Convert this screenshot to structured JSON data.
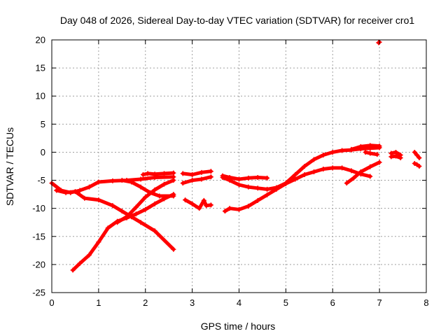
{
  "chart_data": {
    "type": "scatter",
    "title": "Day 048 of 2026, Sidereal Day-to-day VTEC variation (SDTVAR) for receiver cro1",
    "xlabel": "GPS time / hours",
    "ylabel": "SDTVAR / TECUs",
    "xlim": [
      0,
      8
    ],
    "ylim": [
      -25,
      20
    ],
    "xticks": [
      0,
      1,
      2,
      3,
      4,
      5,
      6,
      7,
      8
    ],
    "yticks": [
      -25,
      -20,
      -15,
      -10,
      -5,
      0,
      5,
      10,
      15,
      20
    ],
    "grid": true,
    "color": "#ff0000",
    "series": [
      {
        "x": [
          0.0,
          0.2,
          0.4,
          0.6,
          0.8,
          1.0,
          1.3,
          1.6,
          1.9,
          2.2,
          2.6
        ],
        "y": [
          -5.5,
          -6.8,
          -7.2,
          -6.8,
          -6.2,
          -5.3,
          -5.1,
          -5.0,
          -4.8,
          -4.5,
          -4.4
        ]
      },
      {
        "x": [
          0.1,
          0.3,
          0.5,
          0.7,
          1.0,
          1.3,
          1.5,
          1.7,
          1.9,
          2.2,
          2.6
        ],
        "y": [
          -6.8,
          -7.2,
          -7.0,
          -8.2,
          -8.5,
          -9.5,
          -10.5,
          -11.5,
          -12.5,
          -14.0,
          -17.3
        ]
      },
      {
        "x": [
          0.45,
          0.6,
          0.8,
          1.0,
          1.2,
          1.4,
          1.6,
          1.8,
          2.0,
          2.2,
          2.4,
          2.6
        ],
        "y": [
          -21.0,
          -19.8,
          -18.3,
          -16.0,
          -13.5,
          -12.3,
          -11.7,
          -11.0,
          -10.2,
          -9.2,
          -8.3,
          -7.5
        ]
      },
      {
        "x": [
          1.4,
          1.6,
          1.8,
          2.0,
          2.2,
          2.4,
          2.6
        ],
        "y": [
          -12.5,
          -11.5,
          -9.8,
          -8.0,
          -6.7,
          -5.7,
          -5.0
        ]
      },
      {
        "x": [
          1.5,
          1.7,
          1.9,
          2.1,
          2.3,
          2.6
        ],
        "y": [
          -5.0,
          -5.3,
          -6.2,
          -7.2,
          -7.8,
          -7.8
        ]
      },
      {
        "x": [
          1.95,
          2.05,
          2.2,
          2.4,
          2.6
        ],
        "y": [
          -4.0,
          -3.8,
          -3.9,
          -3.8,
          -3.7
        ]
      },
      {
        "x": [
          2.8,
          3.0,
          3.2,
          3.4
        ],
        "y": [
          -5.5,
          -5.0,
          -4.8,
          -4.4
        ]
      },
      {
        "x": [
          2.8,
          3.0,
          3.2,
          3.4
        ],
        "y": [
          -3.8,
          -4.0,
          -3.6,
          -3.4
        ]
      },
      {
        "x": [
          2.85,
          3.0,
          3.15,
          3.25,
          3.3,
          3.4
        ],
        "y": [
          -8.5,
          -9.2,
          -10.0,
          -8.6,
          -9.5,
          -9.4
        ]
      },
      {
        "x": [
          3.65,
          3.8,
          4.0,
          4.2,
          4.4,
          4.6
        ],
        "y": [
          -4.2,
          -4.5,
          -4.8,
          -4.6,
          -4.5,
          -4.6
        ]
      },
      {
        "x": [
          3.65,
          3.8,
          4.0,
          4.2,
          4.4,
          4.6,
          4.8,
          5.0,
          5.2,
          5.4,
          5.6,
          5.8,
          6.0,
          6.2,
          6.4,
          6.6,
          6.8,
          7.0
        ],
        "y": [
          -4.5,
          -5.0,
          -5.8,
          -6.2,
          -6.4,
          -6.6,
          -6.3,
          -5.5,
          -4.0,
          -2.5,
          -1.3,
          -0.5,
          0.0,
          0.3,
          0.4,
          0.6,
          0.7,
          0.8
        ]
      },
      {
        "x": [
          3.7,
          3.8,
          4.0,
          4.2,
          4.4,
          4.6,
          4.8,
          5.0,
          5.2,
          5.4,
          5.6,
          5.8,
          6.0,
          6.2,
          6.4,
          6.6,
          6.8
        ],
        "y": [
          -10.5,
          -10.0,
          -10.2,
          -9.6,
          -8.6,
          -7.6,
          -6.6,
          -5.6,
          -4.8,
          -4.0,
          -3.5,
          -3.0,
          -2.8,
          -2.8,
          -3.3,
          -3.9,
          -4.3
        ]
      },
      {
        "x": [
          6.3,
          6.45,
          6.6,
          6.8,
          7.0
        ],
        "y": [
          -5.5,
          -4.6,
          -3.5,
          -2.6,
          -1.8
        ]
      },
      {
        "x": [
          6.4,
          6.6,
          6.8,
          7.0
        ],
        "y": [
          0.5,
          1.0,
          1.2,
          1.1
        ]
      },
      {
        "x": [
          6.7,
          6.8,
          6.95
        ],
        "y": [
          0.0,
          -0.2,
          -0.4
        ]
      },
      {
        "x": [
          7.25,
          7.35,
          7.45
        ],
        "y": [
          -0.2,
          0.0,
          -0.5
        ]
      },
      {
        "x": [
          7.25,
          7.35,
          7.45
        ],
        "y": [
          -0.8,
          -0.7,
          -1.0
        ]
      },
      {
        "x": [
          7.75,
          7.8,
          7.85
        ],
        "y": [
          0.0,
          -0.5,
          -1.0
        ]
      },
      {
        "x": [
          7.75,
          7.8,
          7.85
        ],
        "y": [
          -2.0,
          -2.2,
          -2.5
        ]
      },
      {
        "x": [
          6.98,
          7.0
        ],
        "y": [
          19.5,
          19.6
        ]
      }
    ]
  }
}
